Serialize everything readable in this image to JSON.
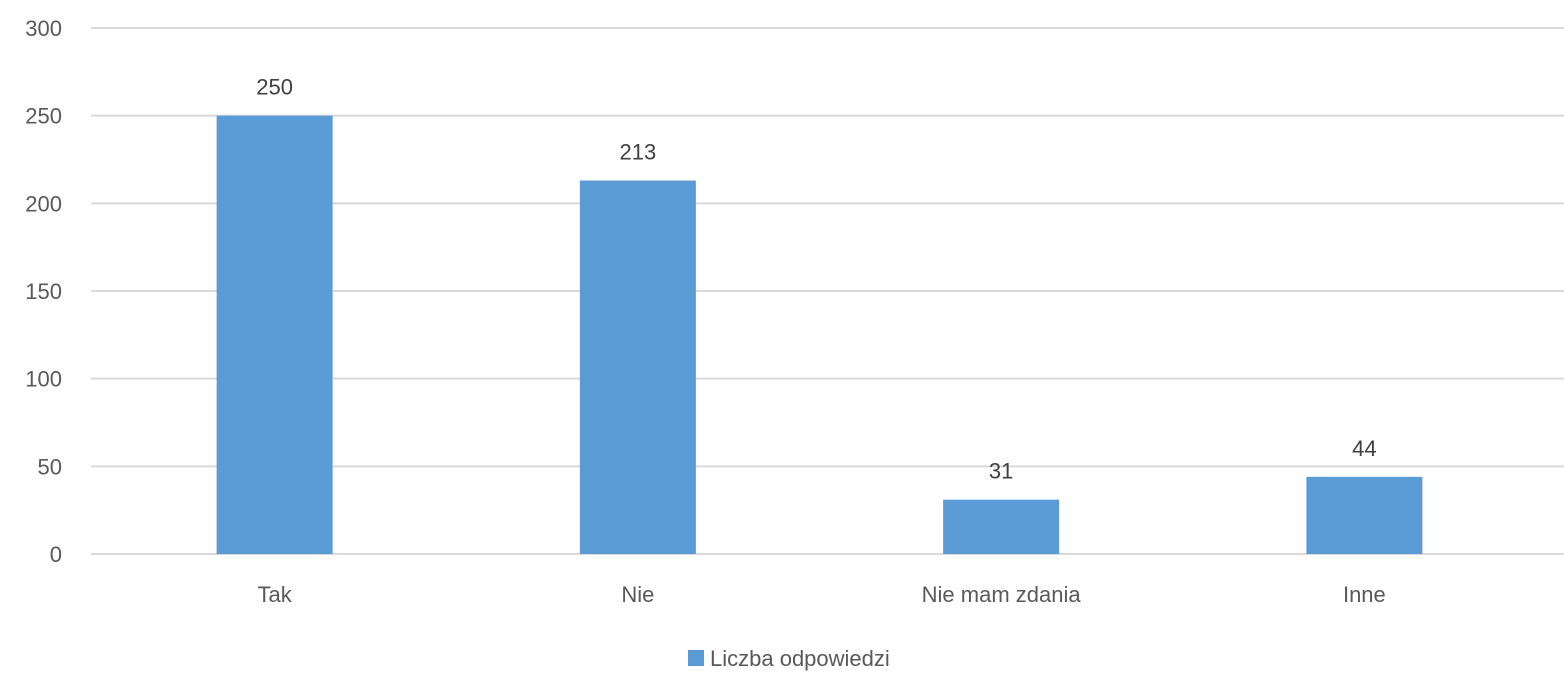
{
  "chart_data": {
    "type": "bar",
    "categories": [
      "Tak",
      "Nie",
      "Nie mam zdania",
      "Inne"
    ],
    "series": [
      {
        "name": "Liczba odpowiedzi",
        "values": [
          250,
          213,
          31,
          44
        ],
        "color": "#5b9bd5"
      }
    ],
    "ylim": [
      0,
      300
    ],
    "yticks": [
      0,
      50,
      100,
      150,
      200,
      250,
      300
    ],
    "grid": true,
    "data_labels": true,
    "legend_position": "bottom"
  }
}
